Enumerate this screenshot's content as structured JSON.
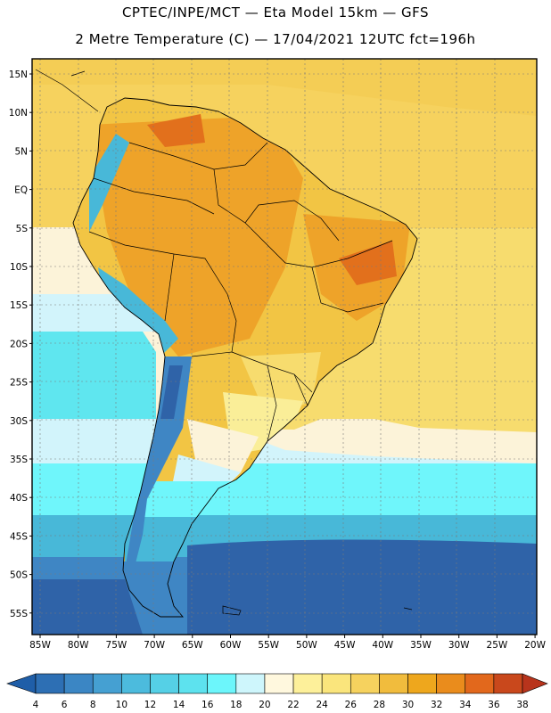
{
  "header": {
    "line1": "CPTEC/INPE/MCT —  Eta Model 15km — GFS",
    "line2": "2 Metre Temperature (C) — 17/04/2021 12UTC fct=196h"
  },
  "map": {
    "lat_labels": [
      "15N",
      "10N",
      "5N",
      "EQ",
      "5S",
      "10S",
      "15S",
      "20S",
      "25S",
      "30S",
      "35S",
      "40S",
      "45S",
      "50S",
      "55S"
    ],
    "lon_labels": [
      "85W",
      "80W",
      "75W",
      "70W",
      "65W",
      "60W",
      "55W",
      "50W",
      "45W",
      "40W",
      "35W",
      "30W",
      "25W",
      "20W"
    ],
    "colors": {
      "deep_blue": "#2f63a8",
      "blue": "#3f86c4",
      "teal": "#48b8d8",
      "cyan": "#5fe6ef",
      "bright_cyan": "#6ff6fb",
      "pale_cyan": "#d2f4fb",
      "cream": "#fcf3d9",
      "pale_yellow": "#faee98",
      "yellow": "#f7dc6e",
      "gold": "#f2c544",
      "orange": "#eea329",
      "dark_orange": "#e2701c"
    }
  },
  "colorbar": {
    "labels": [
      "4",
      "6",
      "8",
      "10",
      "12",
      "14",
      "16",
      "18",
      "20",
      "22",
      "24",
      "26",
      "28",
      "30",
      "32",
      "34",
      "36",
      "38"
    ],
    "colors": [
      "#1f5ea8",
      "#2d6fb4",
      "#3b86c4",
      "#45a0d2",
      "#4cbbdd",
      "#55d0e6",
      "#5de2ee",
      "#6cf6fb",
      "#cef6fc",
      "#fff8de",
      "#fdf09a",
      "#fae57c",
      "#f6d25e",
      "#f1bc3d",
      "#eea71d",
      "#ea8c1c",
      "#e2681c",
      "#c9481c",
      "#b8341c"
    ]
  }
}
